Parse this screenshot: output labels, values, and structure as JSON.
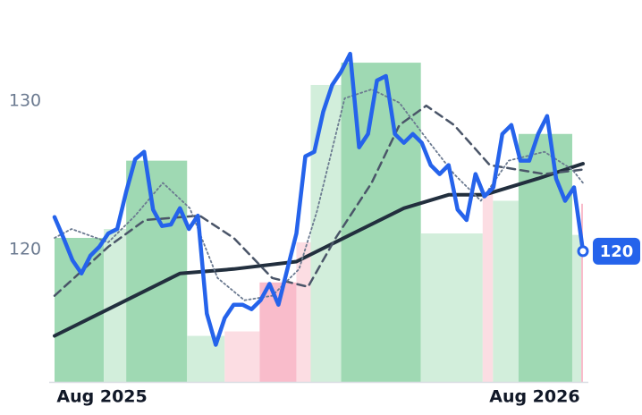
{
  "chart_data": {
    "type": "line",
    "x": [
      0,
      1,
      2,
      3,
      4,
      5,
      6,
      7,
      8,
      9,
      10,
      11,
      12,
      13,
      14,
      15,
      16,
      17,
      18,
      19,
      20,
      21,
      22,
      23,
      24,
      25,
      26,
      27,
      28,
      29,
      30,
      31,
      32,
      33,
      34,
      35,
      36,
      37,
      38,
      39,
      40,
      41,
      42,
      43,
      44,
      45,
      46,
      47,
      48,
      49,
      50,
      51,
      52,
      53,
      54,
      55,
      56,
      57,
      58,
      59
    ],
    "xlim": [
      0,
      59
    ],
    "xticks": [
      {
        "value": 5.3,
        "label": "Aug 2025"
      },
      {
        "value": 53.6,
        "label": "Aug 2026"
      }
    ],
    "ylim": [
      111.1,
      136.7
    ],
    "yticks": [
      120,
      130
    ],
    "bands": {
      "edges": [
        0,
        5.5,
        8,
        14.8,
        19,
        22.9,
        27,
        28.6,
        32,
        40.9,
        47.8,
        48.95,
        51.8,
        57.8,
        58.8,
        59
      ],
      "values": [
        120.8,
        121.4,
        126.0,
        114.2,
        114.5,
        117.8,
        120.5,
        131.1,
        132.6,
        121.1,
        123.9,
        123.3,
        127.8,
        121.0,
        123.1
      ],
      "colors": [
        "#9fd9b3",
        "#d2eedb",
        "#9fd9b3",
        "#d2eedb",
        "#fcdde3",
        "#f9bccb",
        "#fcdde3",
        "#d2eedb",
        "#9fd9b3",
        "#d2eedb",
        "#fcdde3",
        "#d2eedb",
        "#9fd9b3",
        "#d2eedb",
        "#f9bccb"
      ]
    },
    "series": [
      {
        "color": "#222f3e",
        "style": "solid",
        "width": 4,
        "x": [
          0,
          6,
          14,
          20,
          27,
          33,
          39,
          44,
          48,
          54,
          59
        ],
        "values": [
          114.2,
          116.0,
          118.4,
          118.7,
          119.2,
          121.0,
          122.8,
          123.7,
          123.7,
          124.8,
          125.8
        ]
      },
      {
        "color": "#4a5568",
        "style": "dashed",
        "width": 2.5,
        "x": [
          0,
          6,
          10.1,
          16.2,
          20,
          24.3,
          28.3,
          31.4,
          35.4,
          38.5,
          41.5,
          44.6,
          48.6,
          54.7,
          59
        ],
        "values": [
          116.9,
          120.2,
          122.0,
          122.3,
          120.8,
          118.1,
          117.5,
          120.8,
          124.5,
          128.4,
          129.7,
          128.4,
          125.7,
          125.1,
          125.4
        ]
      },
      {
        "color": "#6b7a90",
        "style": "dotted",
        "width": 1.8,
        "x": [
          0,
          1.9,
          6,
          9,
          12.1,
          15.1,
          18.2,
          21.2,
          24.3,
          27.3,
          29.3,
          32.4,
          35.4,
          38.5,
          41.5,
          44.6,
          47.6,
          50.7,
          54.7,
          57.8,
          59
        ],
        "values": [
          120.8,
          121.4,
          120.5,
          122.3,
          124.5,
          122.8,
          118.1,
          116.6,
          116.9,
          118.7,
          122.6,
          130.2,
          130.8,
          129.9,
          127.5,
          125.1,
          123.3,
          126.0,
          126.6,
          125.4,
          124.5
        ]
      },
      {
        "color": "#2563eb",
        "style": "solid",
        "width": 4.5,
        "last_value_label": "120",
        "values": [
          122.2,
          120.8,
          119.3,
          118.4,
          119.6,
          120.2,
          121.1,
          121.4,
          123.9,
          126.1,
          126.6,
          122.7,
          121.6,
          121.7,
          122.8,
          121.4,
          122.3,
          115.7,
          113.6,
          115.4,
          116.3,
          116.3,
          116.0,
          116.6,
          117.7,
          116.3,
          118.7,
          121.1,
          126.3,
          126.6,
          129.3,
          131.1,
          132.0,
          133.2,
          126.9,
          127.8,
          131.4,
          131.7,
          127.8,
          127.2,
          127.8,
          127.2,
          125.7,
          125.1,
          125.7,
          122.7,
          122.0,
          125.1,
          123.6,
          124.2,
          127.8,
          128.4,
          126.0,
          126.0,
          127.8,
          129.0,
          124.8,
          123.3,
          124.2,
          119.9
        ]
      }
    ]
  }
}
